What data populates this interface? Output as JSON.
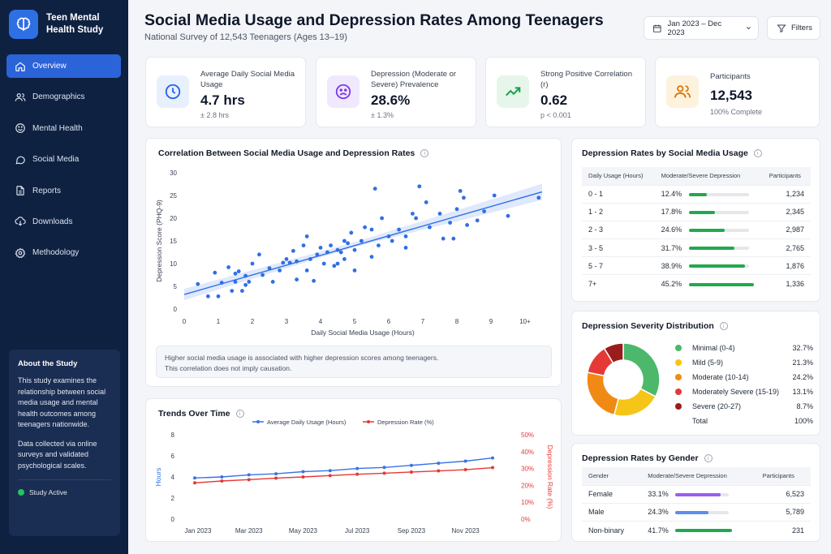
{
  "app": {
    "name_line1": "Teen Mental",
    "name_line2": "Health Study"
  },
  "nav": [
    {
      "label": "Overview",
      "icon": "home-icon",
      "active": true
    },
    {
      "label": "Demographics",
      "icon": "users-icon"
    },
    {
      "label": "Mental Health",
      "icon": "smile-icon"
    },
    {
      "label": "Social Media",
      "icon": "chat-icon"
    },
    {
      "label": "Reports",
      "icon": "document-icon"
    },
    {
      "label": "Downloads",
      "icon": "cloud-download-icon"
    },
    {
      "label": "Methodology",
      "icon": "gear-icon"
    }
  ],
  "about": {
    "title": "About the Study",
    "p1": "This study examines the relationship between social media usage and mental health outcomes among teenagers nationwide.",
    "p2": "Data collected via online surveys and validated psychological scales.",
    "status": "Study Active"
  },
  "header": {
    "title": "Social Media Usage and Depression Rates Among Teenagers",
    "subtitle": "National Survey of 12,543 Teenagers (Ages 13–19)",
    "date_range": "Jan 2023 – Dec 2023",
    "filters": "Filters"
  },
  "kpis": [
    {
      "label": "Average Daily Social Media Usage",
      "value": "4.7 hrs",
      "sub": "± 2.8 hrs",
      "icon": "clock-icon",
      "color": "#2563eb",
      "bg": "#e8effd"
    },
    {
      "label": "Depression (Moderate or Severe) Prevalence",
      "value": "28.6%",
      "sub": "± 1.3%",
      "icon": "sad-face-icon",
      "color": "#7c3aed",
      "bg": "#f0e9fd"
    },
    {
      "label": "Strong Positive Correlation (r)",
      "value": "0.62",
      "sub": "p < 0.001",
      "icon": "trend-up-icon",
      "color": "#16a34a",
      "bg": "#e6f6ea"
    },
    {
      "label": "Participants",
      "value": "12,543",
      "sub": "100% Complete",
      "icon": "people-icon",
      "color": "#d97706",
      "bg": "#fdf3dc"
    }
  ],
  "scatter": {
    "title": "Correlation Between Social Media Usage and Depression Rates",
    "xlabel": "Daily Social Media Usage (Hours)",
    "ylabel": "Depression Score (PHQ-9)",
    "x_ticks": [
      "0",
      "1",
      "2",
      "3",
      "4",
      "5",
      "6",
      "7",
      "8",
      "9",
      "10+"
    ],
    "y_ticks": [
      "0",
      "5",
      "10",
      "15",
      "20",
      "25",
      "30"
    ],
    "note_line1": "Higher social media usage is associated with higher depression scores among teenagers.",
    "note_line2": "This correlation does not imply causation."
  },
  "trends": {
    "title": "Trends Over Time",
    "legend_usage": "Average Daily Usage (Hours)",
    "legend_depression": "Depression Rate (%)",
    "left_label": "Hours",
    "right_label": "Depression Rate (%)",
    "left_ticks": [
      "0",
      "2",
      "4",
      "6",
      "8"
    ],
    "right_ticks": [
      "0%",
      "10%",
      "20%",
      "30%",
      "40%",
      "50%"
    ],
    "x_labels": [
      "Jan 2023",
      "Mar 2023",
      "May 2023",
      "Jul 2023",
      "Sep 2023",
      "Nov 2023"
    ]
  },
  "usage_table": {
    "title": "Depression Rates by Social Media Usage",
    "headers": [
      "Daily Usage (Hours)",
      "Moderate/Severe Depression",
      "Participants"
    ],
    "rows": [
      {
        "usage": "0 - 1",
        "pct": "12.4%",
        "frac": 0.124,
        "n": "1,234"
      },
      {
        "usage": "1 - 2",
        "pct": "17.8%",
        "frac": 0.178,
        "n": "2,345"
      },
      {
        "usage": "2 - 3",
        "pct": "24.6%",
        "frac": 0.246,
        "n": "2,987"
      },
      {
        "usage": "3 - 5",
        "pct": "31.7%",
        "frac": 0.317,
        "n": "2,765"
      },
      {
        "usage": "5 - 7",
        "pct": "38.9%",
        "frac": 0.389,
        "n": "1,876"
      },
      {
        "usage": "7+",
        "pct": "45.2%",
        "frac": 0.452,
        "n": "1,336"
      }
    ]
  },
  "severity": {
    "title": "Depression Severity Distribution",
    "items": [
      {
        "label": "Minimal (0-4)",
        "pct": "32.7%",
        "color": "#4cb86b"
      },
      {
        "label": "Mild (5-9)",
        "pct": "21.3%",
        "color": "#f5c518"
      },
      {
        "label": "Moderate (10-14)",
        "pct": "24.2%",
        "color": "#f08a14"
      },
      {
        "label": "Moderately Severe (15-19)",
        "pct": "13.1%",
        "color": "#e53935"
      },
      {
        "label": "Severe (20-27)",
        "pct": "8.7%",
        "color": "#9b1c1c"
      }
    ],
    "total_label": "Total",
    "total_pct": "100%"
  },
  "gender_table": {
    "title": "Depression Rates by Gender",
    "headers": [
      "Gender",
      "Moderate/Severe Depression",
      "Participants"
    ],
    "rows": [
      {
        "gender": "Female",
        "pct": "33.1%",
        "frac": 0.331,
        "n": "6,523",
        "color": "#9b5cf0"
      },
      {
        "gender": "Male",
        "pct": "24.3%",
        "frac": 0.243,
        "n": "5,789",
        "color": "#5b8def"
      },
      {
        "gender": "Non-binary",
        "pct": "41.7%",
        "frac": 0.417,
        "n": "231",
        "color": "#22a94f"
      }
    ]
  },
  "chart_data": [
    {
      "type": "scatter",
      "title": "Correlation Between Social Media Usage and Depression Rates",
      "xlabel": "Daily Social Media Usage (Hours)",
      "ylabel": "Depression Score (PHQ-9)",
      "xlim": [
        0,
        10.5
      ],
      "ylim": [
        0,
        30
      ],
      "point_color": "#2f6fe4",
      "points": [
        [
          0.4,
          5.5
        ],
        [
          0.7,
          2.8
        ],
        [
          0.9,
          8
        ],
        [
          1,
          2.8
        ],
        [
          1.1,
          5.8
        ],
        [
          1.3,
          9.2
        ],
        [
          1.4,
          4
        ],
        [
          1.5,
          6
        ],
        [
          1.5,
          7.8
        ],
        [
          1.6,
          8.3
        ],
        [
          1.7,
          4
        ],
        [
          1.8,
          5.3
        ],
        [
          1.8,
          7.3
        ],
        [
          1.9,
          6
        ],
        [
          2.0,
          10
        ],
        [
          2.2,
          12
        ],
        [
          2.3,
          7.5
        ],
        [
          2.5,
          9
        ],
        [
          2.6,
          6
        ],
        [
          2.8,
          8.5
        ],
        [
          2.9,
          10.2
        ],
        [
          3.0,
          11
        ],
        [
          3.1,
          10.2
        ],
        [
          3.2,
          12.8
        ],
        [
          3.3,
          10.5
        ],
        [
          3.3,
          6.5
        ],
        [
          3.5,
          14
        ],
        [
          3.6,
          16
        ],
        [
          3.6,
          8.5
        ],
        [
          3.7,
          11
        ],
        [
          3.8,
          6.2
        ],
        [
          3.9,
          12
        ],
        [
          4.0,
          13.5
        ],
        [
          4.1,
          10
        ],
        [
          4.2,
          12.5
        ],
        [
          4.3,
          14
        ],
        [
          4.4,
          9.5
        ],
        [
          4.5,
          13
        ],
        [
          4.5,
          10
        ],
        [
          4.6,
          12.5
        ],
        [
          4.7,
          15
        ],
        [
          4.7,
          11
        ],
        [
          4.8,
          14.5
        ],
        [
          4.9,
          16.8
        ],
        [
          5.0,
          13
        ],
        [
          5.0,
          8.5
        ],
        [
          5.2,
          15
        ],
        [
          5.3,
          18
        ],
        [
          5.5,
          17.5
        ],
        [
          5.5,
          11.5
        ],
        [
          5.6,
          26.5
        ],
        [
          5.7,
          14
        ],
        [
          5.8,
          20
        ],
        [
          6.0,
          16
        ],
        [
          6.1,
          15
        ],
        [
          6.3,
          17.5
        ],
        [
          6.5,
          13.5
        ],
        [
          6.5,
          16
        ],
        [
          6.7,
          21
        ],
        [
          6.8,
          20
        ],
        [
          6.9,
          27
        ],
        [
          7.1,
          23.5
        ],
        [
          7.2,
          18
        ],
        [
          7.5,
          21
        ],
        [
          7.6,
          15.5
        ],
        [
          7.8,
          19
        ],
        [
          7.9,
          15.5
        ],
        [
          8.0,
          22
        ],
        [
          8.1,
          26
        ],
        [
          8.2,
          24.5
        ],
        [
          8.3,
          18.5
        ],
        [
          8.6,
          19.5
        ],
        [
          8.8,
          21.5
        ],
        [
          9.1,
          25
        ],
        [
          9.5,
          20.5
        ],
        [
          10.4,
          24.5
        ]
      ],
      "trend_line": {
        "x": [
          0,
          10.5
        ],
        "y": [
          3.2,
          25.8
        ]
      }
    },
    {
      "type": "line",
      "title": "Trends Over Time",
      "x": [
        "Jan 2023",
        "Feb 2023",
        "Mar 2023",
        "Apr 2023",
        "May 2023",
        "Jun 2023",
        "Jul 2023",
        "Aug 2023",
        "Sep 2023",
        "Oct 2023",
        "Nov 2023",
        "Dec 2023"
      ],
      "series": [
        {
          "name": "Average Daily Usage (Hours)",
          "axis": "left",
          "color": "#3b73e4",
          "values": [
            3.9,
            4.0,
            4.2,
            4.3,
            4.5,
            4.6,
            4.8,
            4.9,
            5.1,
            5.3,
            5.5,
            5.8
          ]
        },
        {
          "name": "Depression Rate (%)",
          "axis": "right",
          "color": "#e53935",
          "values": [
            21.5,
            22.6,
            23.4,
            24.3,
            25.0,
            25.8,
            26.6,
            27.2,
            27.9,
            28.6,
            29.3,
            30.5
          ]
        }
      ],
      "left_axis": {
        "label": "Hours",
        "ylim": [
          0,
          8
        ]
      },
      "right_axis": {
        "label": "Depression Rate (%)",
        "ylim": [
          0,
          50
        ]
      }
    },
    {
      "type": "pie",
      "title": "Depression Severity Distribution",
      "categories": [
        "Minimal (0-4)",
        "Mild (5-9)",
        "Moderate (10-14)",
        "Moderately Severe (15-19)",
        "Severe (20-27)"
      ],
      "values": [
        32.7,
        21.3,
        24.2,
        13.1,
        8.7
      ],
      "colors": [
        "#4cb86b",
        "#f5c518",
        "#f08a14",
        "#e53935",
        "#9b1c1c"
      ]
    }
  ]
}
